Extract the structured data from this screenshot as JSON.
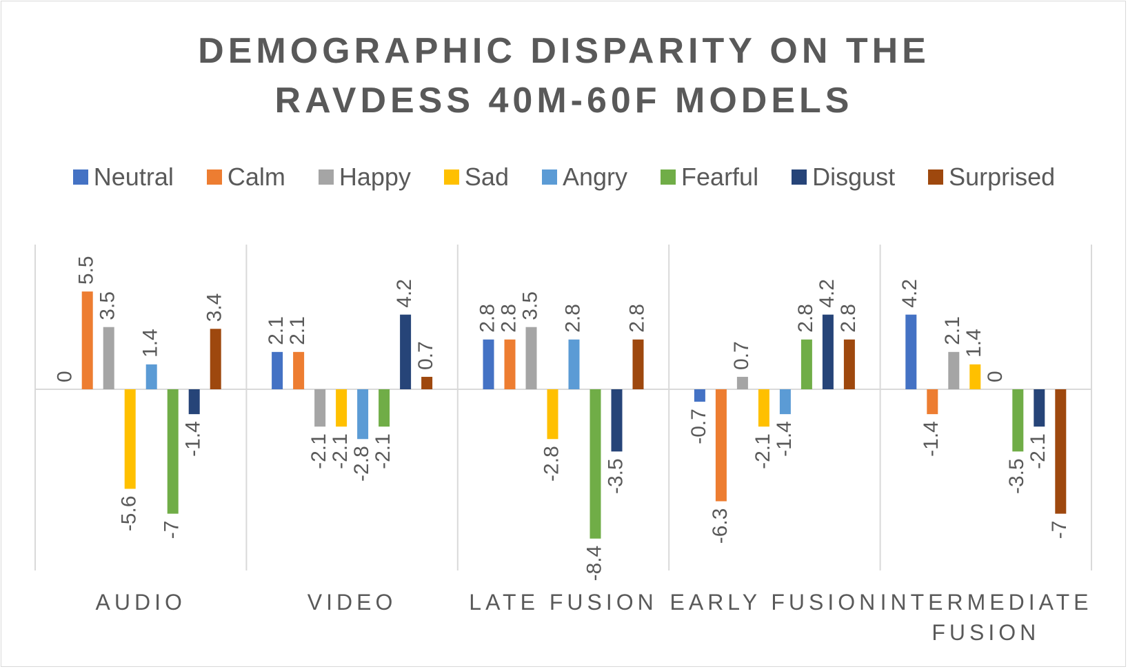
{
  "chart_data": {
    "type": "bar",
    "title": "DEMOGRAPHIC DISPARITY ON THE RAVDESS 40M-60F MODELS",
    "title_lines": [
      "DEMOGRAPHIC DISPARITY ON THE",
      "RAVDESS 40M-60F MODELS"
    ],
    "categories": [
      "AUDIO",
      "VIDEO",
      "LATE FUSION",
      "EARLY FUSION",
      "INTERMEDIATE FUSION"
    ],
    "category_lines": [
      [
        "AUDIO"
      ],
      [
        "VIDEO"
      ],
      [
        "LATE FUSION"
      ],
      [
        "EARLY FUSION"
      ],
      [
        "INTERMEDIATE",
        "FUSION"
      ]
    ],
    "series": [
      {
        "name": "Neutral",
        "color": "#4472c4",
        "values": [
          0,
          2.1,
          2.8,
          -0.7,
          4.2
        ]
      },
      {
        "name": "Calm",
        "color": "#ed7d31",
        "values": [
          5.5,
          2.1,
          2.8,
          -6.3,
          -1.4
        ]
      },
      {
        "name": "Happy",
        "color": "#a5a5a5",
        "values": [
          3.5,
          -2.1,
          3.5,
          0.7,
          2.1
        ]
      },
      {
        "name": "Sad",
        "color": "#ffc000",
        "values": [
          -5.6,
          -2.1,
          -2.8,
          -2.1,
          1.4
        ]
      },
      {
        "name": "Angry",
        "color": "#5b9bd5",
        "values": [
          1.4,
          -2.8,
          2.8,
          -1.4,
          0
        ]
      },
      {
        "name": "Fearful",
        "color": "#70ad47",
        "values": [
          -7,
          -2.1,
          -8.4,
          2.8,
          -3.5
        ]
      },
      {
        "name": "Disgust",
        "color": "#264478",
        "values": [
          -1.4,
          4.2,
          -3.5,
          4.2,
          -2.1
        ]
      },
      {
        "name": "Surprised",
        "color": "#9e480e",
        "values": [
          3.4,
          0.7,
          2.8,
          2.8,
          -7
        ]
      }
    ],
    "ylim": [
      -10,
      8
    ],
    "grid": "vertical category separators",
    "legend_position": "top",
    "data_labels": true
  }
}
